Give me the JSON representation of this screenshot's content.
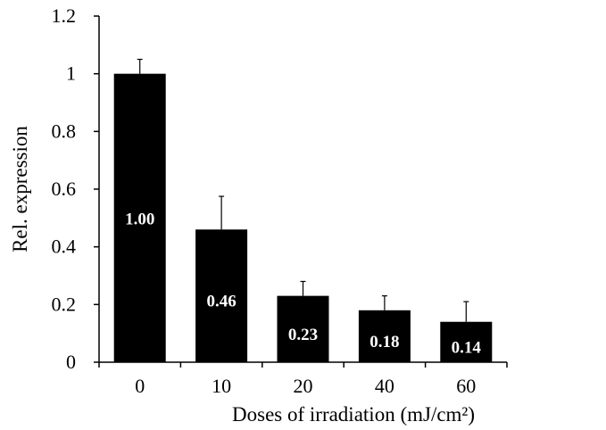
{
  "chart_data": {
    "type": "bar",
    "title": "",
    "xlabel": "Doses of irradiation (mJ/cm²)",
    "ylabel": "Rel. expression",
    "categories": [
      "0",
      "10",
      "20",
      "40",
      "60"
    ],
    "series": [
      {
        "values": [
          1.0,
          0.46,
          0.23,
          0.18,
          0.14
        ],
        "error": [
          0.05,
          0.115,
          0.05,
          0.05,
          0.07
        ],
        "data_labels": [
          "1.00",
          "0.46",
          "0.23",
          "0.18",
          "0.14"
        ],
        "color": "#000000"
      }
    ],
    "ylim": [
      0,
      1.2
    ],
    "yticks": [
      0,
      0.2,
      0.4,
      0.6,
      0.8,
      1,
      1.2
    ],
    "ytick_labels": [
      "0",
      "0.2",
      "0.4",
      "0.6",
      "0.8",
      "1",
      "1.2"
    ],
    "grid": false,
    "legend": "none",
    "label_color": "#ffffff",
    "axis_color": "#000000"
  }
}
